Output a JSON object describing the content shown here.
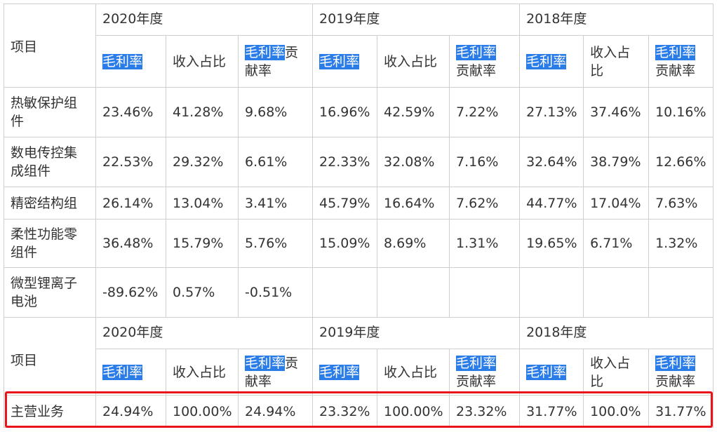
{
  "header": {
    "item_label": "项目",
    "years": [
      "2020年度",
      "2019年度",
      "2018年度"
    ],
    "col_margin": "毛利率",
    "col_share": "收入占比",
    "col_contrib_hl": "毛利率",
    "col_contrib_rest": "贡献率",
    "share_2018_a": "收入占",
    "share_2018_b": "比",
    "contrib_2020_a": "贡",
    "contrib_2020_b": "献率"
  },
  "rows": [
    {
      "name_a": "热敏保护组",
      "name_b": "件",
      "v": [
        "23.46%",
        "41.28%",
        "9.68%",
        "16.96%",
        "42.59%",
        "7.22%",
        "27.13%",
        "37.46%",
        "10.16%"
      ]
    },
    {
      "name_a": "数电传控集",
      "name_b": "成组件",
      "v": [
        "22.53%",
        "29.32%",
        "6.61%",
        "22.33%",
        "32.08%",
        "7.16%",
        "32.64%",
        "38.79%",
        "12.66%"
      ]
    },
    {
      "name_a": "精密结构组",
      "name_b": "",
      "v": [
        "26.14%",
        "13.04%",
        "3.41%",
        "45.79%",
        "16.64%",
        "7.62%",
        "44.77%",
        "17.04%",
        "7.63%"
      ]
    },
    {
      "name_a": "柔性功能零",
      "name_b": "组件",
      "v": [
        "36.48%",
        "15.79%",
        "5.76%",
        "15.09%",
        "8.69%",
        "1.31%",
        "19.65%",
        "6.71%",
        "1.32%"
      ]
    },
    {
      "name_a": "微型锂离子",
      "name_b": "电池",
      "v": [
        "-89.62%",
        "0.57%",
        "-0.51%",
        "",
        "",
        "",
        "",
        "",
        ""
      ]
    }
  ],
  "main_business": {
    "name": "主营业务",
    "v": [
      "24.94%",
      "100.00%",
      "24.94%",
      "23.32%",
      "100.00%",
      "23.32%",
      "31.77%",
      "100.0%",
      "31.77%"
    ]
  },
  "highlight_color": "#2a7ce8",
  "box_color": "#e8141a"
}
